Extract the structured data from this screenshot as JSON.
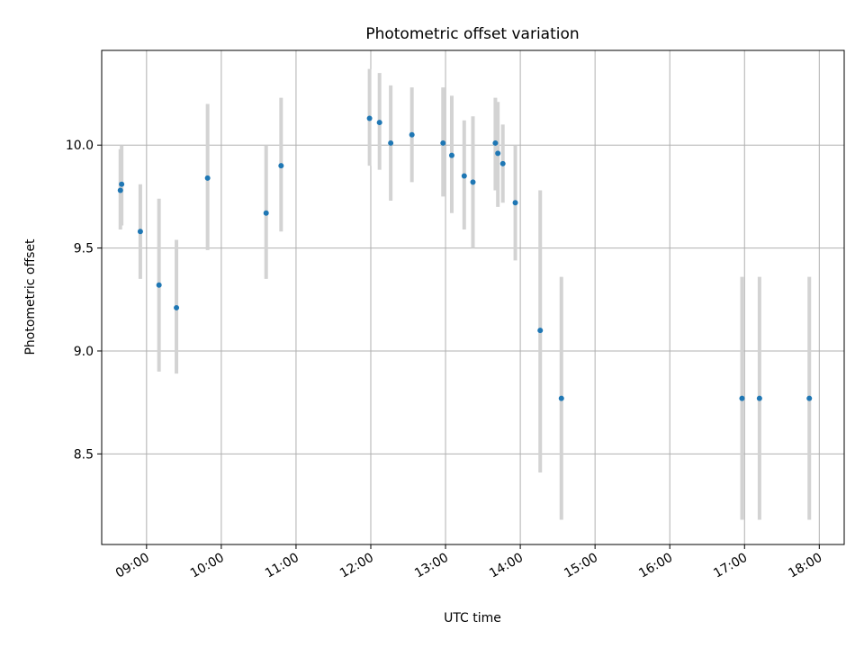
{
  "chart_data": {
    "type": "scatter",
    "title": "Photometric offset variation",
    "xlabel": "UTC time",
    "ylabel": "Photometric offset",
    "x_axis_type": "time",
    "xlim": [
      "08:24",
      "18:20"
    ],
    "ylim": [
      8.06,
      10.46
    ],
    "x_ticks": [
      "09:00",
      "10:00",
      "11:00",
      "12:00",
      "13:00",
      "14:00",
      "15:00",
      "16:00",
      "17:00",
      "18:00"
    ],
    "y_ticks": [
      8.5,
      9.0,
      9.5,
      10.0
    ],
    "y_tick_labels": [
      "8.5",
      "9.0",
      "9.5",
      "10.0"
    ],
    "grid": true,
    "colors": {
      "point": "#1f77b4",
      "error_bar": "#d3d3d3",
      "grid": "#b0b0b0"
    },
    "series": [
      {
        "points": [
          {
            "x": "08:39",
            "y": 9.78,
            "low": 9.59,
            "high": 9.98
          },
          {
            "x": "08:40",
            "y": 9.81,
            "low": 9.61,
            "high": 10.0
          },
          {
            "x": "08:55",
            "y": 9.58,
            "low": 9.35,
            "high": 9.81
          },
          {
            "x": "09:10",
            "y": 9.32,
            "low": 8.9,
            "high": 9.74
          },
          {
            "x": "09:24",
            "y": 9.21,
            "low": 8.89,
            "high": 9.54
          },
          {
            "x": "09:49",
            "y": 9.84,
            "low": 9.49,
            "high": 10.2
          },
          {
            "x": "10:36",
            "y": 9.67,
            "low": 9.35,
            "high": 10.0
          },
          {
            "x": "10:48",
            "y": 9.9,
            "low": 9.58,
            "high": 10.23
          },
          {
            "x": "11:59",
            "y": 10.13,
            "low": 9.9,
            "high": 10.37
          },
          {
            "x": "12:07",
            "y": 10.11,
            "low": 9.88,
            "high": 10.35
          },
          {
            "x": "12:16",
            "y": 10.01,
            "low": 9.73,
            "high": 10.29
          },
          {
            "x": "12:33",
            "y": 10.05,
            "low": 9.82,
            "high": 10.28
          },
          {
            "x": "12:58",
            "y": 10.01,
            "low": 9.75,
            "high": 10.28
          },
          {
            "x": "13:05",
            "y": 9.95,
            "low": 9.67,
            "high": 10.24
          },
          {
            "x": "13:15",
            "y": 9.85,
            "low": 9.59,
            "high": 10.12
          },
          {
            "x": "13:22",
            "y": 9.82,
            "low": 9.5,
            "high": 10.14
          },
          {
            "x": "13:40",
            "y": 10.01,
            "low": 9.78,
            "high": 10.23
          },
          {
            "x": "13:42",
            "y": 9.96,
            "low": 9.7,
            "high": 10.21
          },
          {
            "x": "13:46",
            "y": 9.91,
            "low": 9.72,
            "high": 10.1
          },
          {
            "x": "13:56",
            "y": 9.72,
            "low": 9.44,
            "high": 10.0
          },
          {
            "x": "14:16",
            "y": 9.1,
            "low": 8.41,
            "high": 9.78
          },
          {
            "x": "14:33",
            "y": 8.77,
            "low": 8.18,
            "high": 9.36
          },
          {
            "x": "16:58",
            "y": 8.77,
            "low": 8.18,
            "high": 9.36
          },
          {
            "x": "17:12",
            "y": 8.77,
            "low": 8.18,
            "high": 9.36
          },
          {
            "x": "17:52",
            "y": 8.77,
            "low": 8.18,
            "high": 9.36
          }
        ]
      }
    ]
  }
}
